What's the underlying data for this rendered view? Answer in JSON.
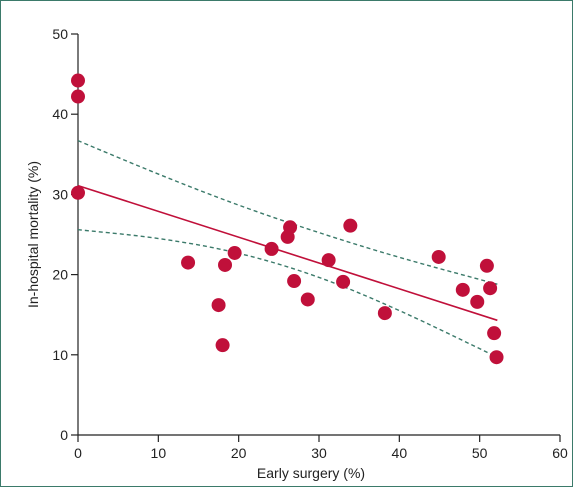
{
  "chart_data": {
    "type": "scatter",
    "xlabel": "Early surgery (%)",
    "ylabel": "In-hospital mortality (%)",
    "xlim": [
      0,
      60
    ],
    "ylim": [
      0,
      50
    ],
    "x_ticks": [
      "0",
      "10",
      "20",
      "30",
      "40",
      "50",
      "60"
    ],
    "y_ticks": [
      "0",
      "10",
      "20",
      "30",
      "40",
      "50"
    ],
    "grid": false,
    "legend": "none",
    "colors": {
      "points": "#c0103a",
      "regression": "#c0103a",
      "ci": "#3b7a6a",
      "axis": "#222222"
    },
    "points": [
      {
        "x": 0,
        "y": 44.2
      },
      {
        "x": 0,
        "y": 42.2
      },
      {
        "x": 0,
        "y": 30.2
      },
      {
        "x": 13.7,
        "y": 21.5
      },
      {
        "x": 17.5,
        "y": 16.2
      },
      {
        "x": 18.0,
        "y": 11.2
      },
      {
        "x": 18.3,
        "y": 21.2
      },
      {
        "x": 19.5,
        "y": 22.7
      },
      {
        "x": 24.1,
        "y": 23.2
      },
      {
        "x": 26.1,
        "y": 24.7
      },
      {
        "x": 26.4,
        "y": 25.9
      },
      {
        "x": 26.9,
        "y": 19.2
      },
      {
        "x": 28.6,
        "y": 16.9
      },
      {
        "x": 31.2,
        "y": 21.8
      },
      {
        "x": 33.0,
        "y": 19.1
      },
      {
        "x": 33.9,
        "y": 26.1
      },
      {
        "x": 38.2,
        "y": 15.2
      },
      {
        "x": 44.9,
        "y": 22.2
      },
      {
        "x": 47.9,
        "y": 18.1
      },
      {
        "x": 49.7,
        "y": 16.6
      },
      {
        "x": 50.9,
        "y": 21.1
      },
      {
        "x": 51.3,
        "y": 18.3
      },
      {
        "x": 51.8,
        "y": 12.7
      },
      {
        "x": 52.1,
        "y": 9.7
      }
    ],
    "regression_line": {
      "x": [
        0,
        52.2
      ],
      "y": [
        31.1,
        14.3
      ]
    },
    "ci_upper": {
      "x": [
        0,
        10,
        20,
        30,
        40,
        52.2
      ],
      "y": [
        36.7,
        32.5,
        28.6,
        25.2,
        22.1,
        18.8
      ]
    },
    "ci_lower": {
      "x": [
        0,
        10,
        20,
        30,
        40,
        52.2
      ],
      "y": [
        25.6,
        24.6,
        22.8,
        19.8,
        15.6,
        9.7
      ]
    }
  }
}
